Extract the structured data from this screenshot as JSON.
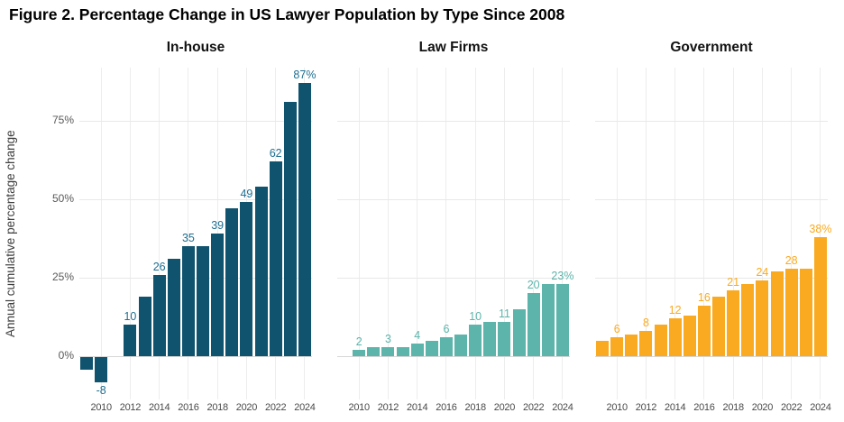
{
  "figure": {
    "title": "Figure 2. Percentage Change in US Lawyer Population by Type Since 2008",
    "y_axis_label": "Annual cumulative percentage change"
  },
  "chart_data": {
    "type": "bar",
    "title": "Figure 2. Percentage Change in US Lawyer Population by Type Since 2008",
    "ylabel": "Annual cumulative percentage change",
    "xlabel": "",
    "ylim": [
      -10,
      92
    ],
    "grid": true,
    "y_ticks": [
      0,
      25,
      50,
      75
    ],
    "y_tick_labels": [
      "0%",
      "25%",
      "50%",
      "75%"
    ],
    "categories": [
      2009,
      2010,
      2011,
      2012,
      2013,
      2014,
      2015,
      2016,
      2017,
      2018,
      2019,
      2020,
      2021,
      2022,
      2023,
      2024
    ],
    "x_tick_years": [
      2010,
      2012,
      2014,
      2016,
      2018,
      2020,
      2022,
      2024
    ],
    "panels": [
      {
        "name": "In-house",
        "color": "#10536E",
        "label_color": "#1D6E90",
        "values": [
          -4,
          -8,
          0,
          10,
          19,
          26,
          31,
          35,
          35,
          39,
          47,
          49,
          54,
          62,
          81,
          87
        ],
        "bar_labels": [
          null,
          "-8",
          null,
          "10",
          null,
          "26",
          null,
          "35",
          null,
          "39",
          null,
          "49",
          null,
          "62",
          null,
          "87%"
        ]
      },
      {
        "name": "Law Firms",
        "color": "#5CB4AA",
        "label_color": "#5CB4AA",
        "values": [
          null,
          2,
          3,
          3,
          3,
          4,
          5,
          6,
          7,
          10,
          11,
          11,
          15,
          20,
          23,
          23
        ],
        "bar_labels": [
          null,
          "2",
          null,
          "3",
          null,
          "4",
          null,
          "6",
          null,
          "10",
          null,
          "11",
          null,
          "20",
          null,
          "23%"
        ]
      },
      {
        "name": "Government",
        "color": "#FAAA20",
        "label_color": "#FAAA20",
        "values": [
          5,
          6,
          7,
          8,
          10,
          12,
          13,
          16,
          19,
          21,
          23,
          24,
          27,
          28,
          28,
          38
        ],
        "bar_labels": [
          null,
          "6",
          null,
          "8",
          null,
          "12",
          null,
          "16",
          null,
          "21",
          null,
          "24",
          null,
          "28",
          null,
          "38%"
        ]
      }
    ]
  }
}
